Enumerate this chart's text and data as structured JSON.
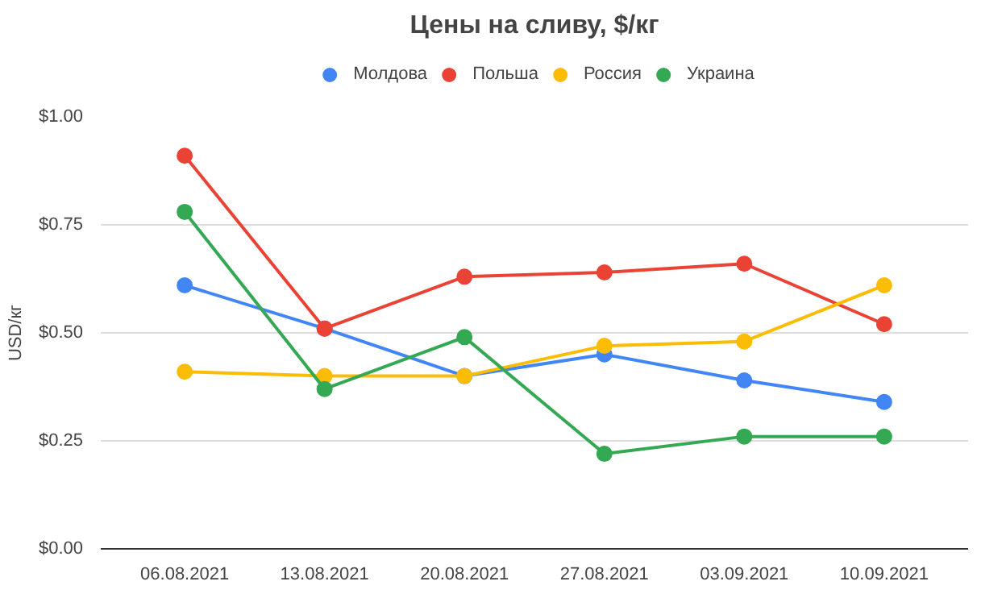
{
  "chart_data": {
    "type": "line",
    "title": "Цены на сливу, $/кг",
    "ylabel": "USD/кг",
    "categories": [
      "06.08.2021",
      "13.08.2021",
      "20.08.2021",
      "27.08.2021",
      "03.09.2021",
      "10.09.2021"
    ],
    "series": [
      {
        "name": "Молдова",
        "color": "#4285f4",
        "values": [
          0.61,
          0.51,
          0.4,
          0.45,
          0.39,
          0.34
        ]
      },
      {
        "name": "Польша",
        "color": "#ea4335",
        "values": [
          0.91,
          0.51,
          0.63,
          0.64,
          0.66,
          0.52
        ]
      },
      {
        "name": "Россия",
        "color": "#fbbc04",
        "values": [
          0.41,
          0.4,
          0.4,
          0.47,
          0.48,
          0.61
        ]
      },
      {
        "name": "Украина",
        "color": "#34a853",
        "values": [
          0.78,
          0.37,
          0.49,
          0.22,
          0.26,
          0.26
        ]
      }
    ],
    "ylim": [
      0,
      1.0
    ],
    "yticks": [
      {
        "value": 0,
        "label": "$0.00"
      },
      {
        "value": 0.25,
        "label": "$0.25"
      },
      {
        "value": 0.5,
        "label": "$0.50"
      },
      {
        "value": 0.75,
        "label": "$0.75"
      },
      {
        "value": 1.0,
        "label": "$1.00"
      }
    ],
    "grid": "y",
    "legend": "top",
    "marker": "circle",
    "line_style": "solid"
  }
}
